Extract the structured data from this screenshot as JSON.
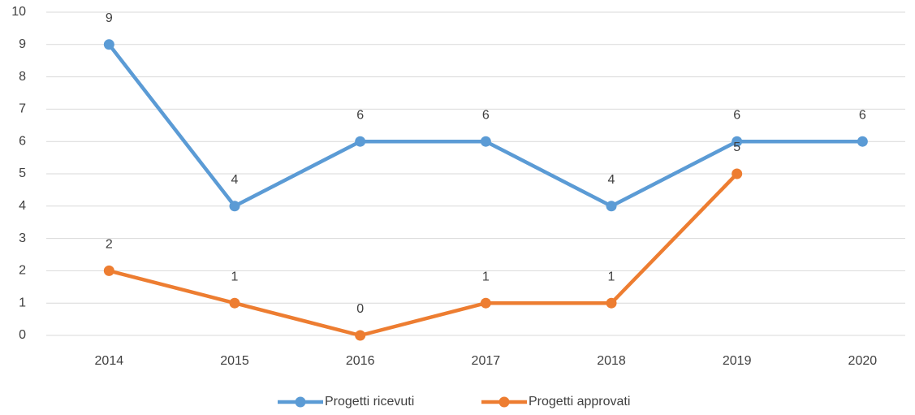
{
  "chart_data": {
    "type": "line",
    "categories": [
      "2014",
      "2015",
      "2016",
      "2017",
      "2018",
      "2019",
      "2020"
    ],
    "series": [
      {
        "name": "Progetti ricevuti",
        "color": "#5b9bd5",
        "values": [
          9,
          4,
          6,
          6,
          4,
          6,
          6
        ]
      },
      {
        "name": "Progetti approvati",
        "color": "#ed7d31",
        "values": [
          2,
          1,
          0,
          1,
          1,
          5,
          null
        ]
      }
    ],
    "ylim": [
      0,
      10
    ],
    "yticks": [
      0,
      1,
      2,
      3,
      4,
      5,
      6,
      7,
      8,
      9,
      10
    ],
    "grid": true,
    "legend": "bottom",
    "data_labels": true
  }
}
